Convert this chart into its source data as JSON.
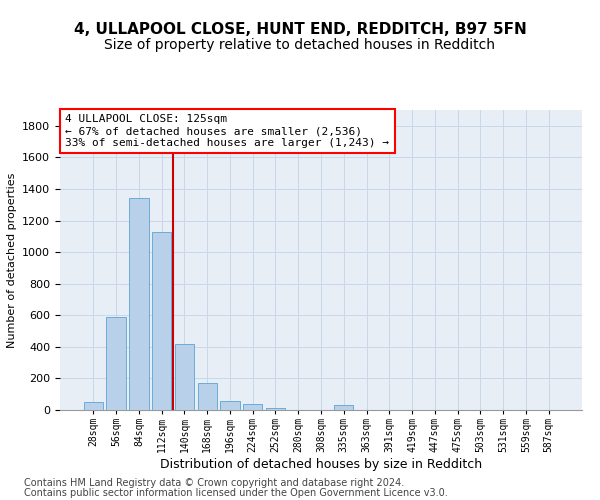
{
  "title_line1": "4, ULLAPOOL CLOSE, HUNT END, REDDITCH, B97 5FN",
  "title_line2": "Size of property relative to detached houses in Redditch",
  "xlabel": "Distribution of detached houses by size in Redditch",
  "ylabel": "Number of detached properties",
  "footnote1": "Contains HM Land Registry data © Crown copyright and database right 2024.",
  "footnote2": "Contains public sector information licensed under the Open Government Licence v3.0.",
  "bar_labels": [
    "28sqm",
    "56sqm",
    "84sqm",
    "112sqm",
    "140sqm",
    "168sqm",
    "196sqm",
    "224sqm",
    "252sqm",
    "280sqm",
    "308sqm",
    "335sqm",
    "363sqm",
    "391sqm",
    "419sqm",
    "447sqm",
    "475sqm",
    "503sqm",
    "531sqm",
    "559sqm",
    "587sqm"
  ],
  "bar_values": [
    50,
    590,
    1340,
    1130,
    420,
    170,
    60,
    35,
    10,
    0,
    0,
    30,
    0,
    0,
    0,
    0,
    0,
    0,
    0,
    0,
    0
  ],
  "bar_color": "#b8d0ea",
  "bar_edge_color": "#6aacd6",
  "annotation_box_text": "4 ULLAPOOL CLOSE: 125sqm\n← 67% of detached houses are smaller (2,536)\n33% of semi-detached houses are larger (1,243) →",
  "vline_position": 3.5,
  "vline_color": "#cc0000",
  "ylim": [
    0,
    1900
  ],
  "yticks": [
    0,
    200,
    400,
    600,
    800,
    1000,
    1200,
    1400,
    1600,
    1800
  ],
  "grid_color": "#c8d8e8",
  "background_color": "#e8eef6",
  "title1_fontsize": 11,
  "title2_fontsize": 10,
  "xlabel_fontsize": 9,
  "ylabel_fontsize": 8,
  "ytick_fontsize": 8,
  "xtick_fontsize": 7,
  "annot_fontsize": 8,
  "footnote_fontsize": 7
}
